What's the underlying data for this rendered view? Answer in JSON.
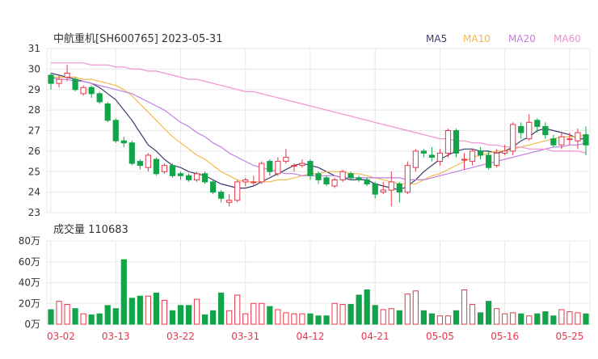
{
  "header": {
    "title": "中航重机[SH600765] 2023-05-31",
    "ma_legend": [
      {
        "label": "MA5",
        "color": "#3b3b6e"
      },
      {
        "label": "MA10",
        "color": "#f2b94b"
      },
      {
        "label": "MA20",
        "color": "#c07ee0"
      },
      {
        "label": "MA60",
        "color": "#f28fcf"
      }
    ]
  },
  "volume_header": {
    "label": "成交量",
    "value": "110683"
  },
  "colors": {
    "up": "#e8374a",
    "down": "#13a44a",
    "grid": "#e8e8e8",
    "axis_text": "#333333",
    "date_text": "#e8374a"
  },
  "chart_data": [
    {
      "type": "candlestick",
      "ylim": [
        23,
        31
      ],
      "yticks": [
        "23",
        "24",
        "25",
        "26",
        "27",
        "28",
        "29",
        "30",
        "31"
      ],
      "candles": [
        [
          29.7,
          29.3,
          29.8,
          29.0
        ],
        [
          29.3,
          29.5,
          29.7,
          29.1
        ],
        [
          29.6,
          29.8,
          30.2,
          29.4
        ],
        [
          29.5,
          29.0,
          29.6,
          28.9
        ],
        [
          28.8,
          29.1,
          29.2,
          28.7
        ],
        [
          29.1,
          28.8,
          29.2,
          28.6
        ],
        [
          28.8,
          28.4,
          28.9,
          28.3
        ],
        [
          28.3,
          27.5,
          28.4,
          27.4
        ],
        [
          27.5,
          26.5,
          27.6,
          26.4
        ],
        [
          26.5,
          26.4,
          26.7,
          26.2
        ],
        [
          26.4,
          25.4,
          26.5,
          25.3
        ],
        [
          25.5,
          25.3,
          25.6,
          25.1
        ],
        [
          25.2,
          25.8,
          25.9,
          25.0
        ],
        [
          25.6,
          24.9,
          25.7,
          24.8
        ],
        [
          25.0,
          25.3,
          25.4,
          24.9
        ],
        [
          25.3,
          24.8,
          25.4,
          24.7
        ],
        [
          24.9,
          24.8,
          25.0,
          24.6
        ],
        [
          24.8,
          24.6,
          24.9,
          24.5
        ],
        [
          24.6,
          24.9,
          25.0,
          24.5
        ],
        [
          24.9,
          24.5,
          25.0,
          24.4
        ],
        [
          24.5,
          24.0,
          24.6,
          23.9
        ],
        [
          24.0,
          23.7,
          24.1,
          23.5
        ],
        [
          23.5,
          23.6,
          23.9,
          23.3
        ],
        [
          23.6,
          24.5,
          24.6,
          23.5
        ],
        [
          24.5,
          24.6,
          24.7,
          24.3
        ],
        [
          24.5,
          24.5,
          24.8,
          24.3
        ],
        [
          24.5,
          25.4,
          25.5,
          24.4
        ],
        [
          25.5,
          25.0,
          25.6,
          24.8
        ],
        [
          24.9,
          25.5,
          25.7,
          24.8
        ],
        [
          25.5,
          25.7,
          26.1,
          25.4
        ],
        [
          25.3,
          25.3,
          25.4,
          25.0
        ],
        [
          25.3,
          25.4,
          25.6,
          25.2
        ],
        [
          25.5,
          24.8,
          25.6,
          24.6
        ],
        [
          24.9,
          24.6,
          25.0,
          24.4
        ],
        [
          24.7,
          24.4,
          24.8,
          24.3
        ],
        [
          24.3,
          24.6,
          24.7,
          24.2
        ],
        [
          24.6,
          25.0,
          25.1,
          24.5
        ],
        [
          24.9,
          24.7,
          25.0,
          24.6
        ],
        [
          24.7,
          24.6,
          24.8,
          24.5
        ],
        [
          24.6,
          24.4,
          24.7,
          24.3
        ],
        [
          24.4,
          23.9,
          24.5,
          23.7
        ],
        [
          24.0,
          24.1,
          24.5,
          23.9
        ],
        [
          24.1,
          24.5,
          25.0,
          23.3
        ],
        [
          24.4,
          24.0,
          24.5,
          23.5
        ],
        [
          24.0,
          25.3,
          25.5,
          23.9
        ],
        [
          25.2,
          26.0,
          26.1,
          25.0
        ],
        [
          26.0,
          25.9,
          26.1,
          25.7
        ],
        [
          25.8,
          25.7,
          26.2,
          25.5
        ],
        [
          25.5,
          25.9,
          26.1,
          25.3
        ],
        [
          25.9,
          27.0,
          27.1,
          25.7
        ],
        [
          27.0,
          25.9,
          27.1,
          25.7
        ],
        [
          25.6,
          25.6,
          25.9,
          25.1
        ],
        [
          25.5,
          26.0,
          26.1,
          25.3
        ],
        [
          26.0,
          25.8,
          26.2,
          25.6
        ],
        [
          25.8,
          25.2,
          26.0,
          25.1
        ],
        [
          25.3,
          25.9,
          26.1,
          25.2
        ],
        [
          25.9,
          26.0,
          26.3,
          25.8
        ],
        [
          26.0,
          27.3,
          27.4,
          25.8
        ],
        [
          27.2,
          26.9,
          27.4,
          26.6
        ],
        [
          26.6,
          27.4,
          27.8,
          26.5
        ],
        [
          27.5,
          27.2,
          27.6,
          26.9
        ],
        [
          27.2,
          26.8,
          27.4,
          26.6
        ],
        [
          26.6,
          26.3,
          26.8,
          26.2
        ],
        [
          26.3,
          26.7,
          26.9,
          26.1
        ],
        [
          26.6,
          26.6,
          26.9,
          26.3
        ],
        [
          26.5,
          26.9,
          27.1,
          26.1
        ],
        [
          26.8,
          26.3,
          27.2,
          25.8
        ]
      ],
      "ma": {
        "MA5": [
          29.8,
          29.7,
          29.6,
          29.5,
          29.4,
          29.3,
          29.1,
          28.8,
          28.5,
          28.0,
          27.5,
          26.9,
          26.3,
          26.0,
          25.6,
          25.3,
          25.2,
          25.0,
          24.9,
          24.8,
          24.6,
          24.4,
          24.3,
          24.2,
          24.2,
          24.3,
          24.5,
          24.7,
          24.9,
          25.1,
          25.3,
          25.4,
          25.3,
          25.2,
          25.0,
          24.8,
          24.7,
          24.6,
          24.6,
          24.6,
          24.4,
          24.3,
          24.2,
          24.1,
          24.3,
          24.6,
          25.0,
          25.3,
          25.6,
          25.8,
          26.0,
          26.1,
          26.1,
          26.0,
          26.0,
          25.9,
          26.0,
          26.2,
          26.5,
          26.7,
          27.0,
          27.1,
          27.0,
          26.9,
          26.8,
          26.6,
          26.6
        ],
        "MA10": [
          29.6,
          29.6,
          29.6,
          29.6,
          29.5,
          29.5,
          29.4,
          29.3,
          29.2,
          29.0,
          28.7,
          28.3,
          27.9,
          27.5,
          27.1,
          26.7,
          26.4,
          26.1,
          25.8,
          25.6,
          25.3,
          25.0,
          24.8,
          24.6,
          24.5,
          24.5,
          24.5,
          24.5,
          24.6,
          24.6,
          24.7,
          24.8,
          24.9,
          24.9,
          25.0,
          25.0,
          25.0,
          24.9,
          24.9,
          24.8,
          24.7,
          24.6,
          24.5,
          24.4,
          24.4,
          24.4,
          24.6,
          24.8,
          24.9,
          25.1,
          25.3,
          25.5,
          25.7,
          25.8,
          25.9,
          26.0,
          26.0,
          26.1,
          26.2,
          26.3,
          26.4,
          26.5,
          26.6,
          26.7,
          26.7,
          26.7,
          26.8
        ],
        "MA20": [
          29.6,
          29.5,
          29.5,
          29.4,
          29.4,
          29.3,
          29.2,
          29.1,
          29.0,
          28.9,
          28.8,
          28.6,
          28.4,
          28.2,
          28.0,
          27.7,
          27.4,
          27.2,
          26.9,
          26.7,
          26.4,
          26.2,
          25.9,
          25.7,
          25.5,
          25.3,
          25.2,
          25.1,
          25.0,
          24.9,
          24.9,
          24.8,
          24.8,
          24.8,
          24.8,
          24.8,
          24.7,
          24.7,
          24.7,
          24.7,
          24.7,
          24.7,
          24.7,
          24.7,
          24.6,
          24.6,
          24.6,
          24.7,
          24.8,
          24.9,
          25.0,
          25.1,
          25.2,
          25.3,
          25.4,
          25.5,
          25.6,
          25.7,
          25.8,
          25.9,
          26.0,
          26.1,
          26.2,
          26.2,
          26.3,
          26.3,
          26.4
        ],
        "MA60": [
          30.3,
          30.3,
          30.3,
          30.3,
          30.3,
          30.2,
          30.2,
          30.2,
          30.1,
          30.1,
          30.0,
          30.0,
          29.9,
          29.9,
          29.8,
          29.7,
          29.6,
          29.5,
          29.5,
          29.4,
          29.3,
          29.2,
          29.1,
          29.0,
          28.9,
          28.9,
          28.8,
          28.7,
          28.6,
          28.5,
          28.4,
          28.3,
          28.2,
          28.1,
          28.0,
          27.9,
          27.8,
          27.7,
          27.6,
          27.5,
          27.4,
          27.3,
          27.2,
          27.1,
          27.0,
          26.9,
          26.8,
          26.7,
          26.6,
          26.6,
          26.5,
          26.5,
          26.4,
          26.4,
          26.3,
          26.3,
          26.2,
          26.2,
          26.2,
          26.1,
          26.1,
          26.1,
          26.0,
          26.0,
          26.0,
          26.0,
          25.9
        ]
      }
    },
    {
      "type": "bar",
      "ylim": [
        0,
        80
      ],
      "yticks": [
        "0万",
        "20万",
        "40万",
        "60万",
        "80万"
      ],
      "volumes": [
        14,
        22,
        19,
        15,
        10,
        9,
        10,
        18,
        15,
        62,
        25,
        27,
        27,
        30,
        23,
        13,
        18,
        18,
        24,
        9,
        13,
        30,
        13,
        28,
        10,
        20,
        20,
        17,
        14,
        11,
        10,
        10,
        10,
        8,
        8,
        20,
        19,
        19,
        28,
        33,
        18,
        14,
        15,
        13,
        29,
        32,
        13,
        10,
        8,
        8,
        13,
        33,
        19,
        11,
        22,
        15,
        10,
        11,
        10,
        8,
        10,
        12,
        8,
        14,
        12,
        11,
        10
      ],
      "xtick_labels": [
        {
          "index": 0,
          "label": "03-02"
        },
        {
          "index": 8,
          "label": "03-13"
        },
        {
          "index": 16,
          "label": "03-22"
        },
        {
          "index": 24,
          "label": "03-31"
        },
        {
          "index": 32,
          "label": "04-12"
        },
        {
          "index": 40,
          "label": "04-21"
        },
        {
          "index": 48,
          "label": "05-05"
        },
        {
          "index": 56,
          "label": "05-16"
        },
        {
          "index": 64,
          "label": "05-25"
        }
      ]
    }
  ]
}
